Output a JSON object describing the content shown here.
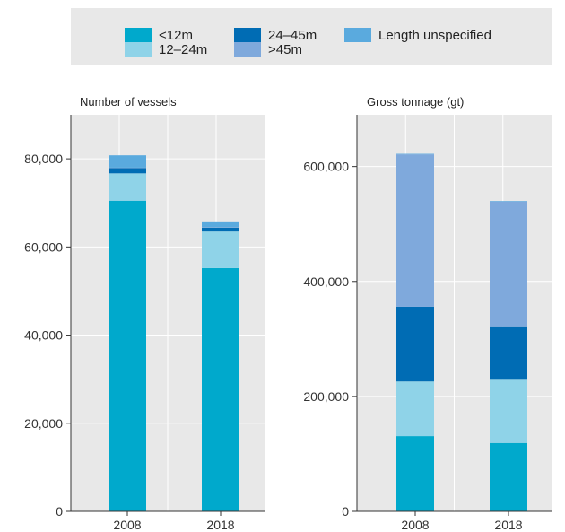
{
  "legend": {
    "items": [
      {
        "label": "<12m",
        "color": "#00a9cc"
      },
      {
        "label": "12–24m",
        "color": "#8fd3e8"
      },
      {
        "label": "24–45m",
        "color": "#006cb4"
      },
      {
        "label": ">45m",
        "color": "#7fa9dc"
      },
      {
        "label": "Length unspecified",
        "color": "#5aaade"
      }
    ]
  },
  "chart_data": [
    {
      "type": "bar",
      "stacked": true,
      "title": "Number of vessels",
      "categories": [
        "2008",
        "2018"
      ],
      "ylim": [
        0,
        90000
      ],
      "yticks": [
        0,
        20000,
        40000,
        60000,
        80000
      ],
      "ytick_labels": [
        "0",
        "20,000",
        "40,000",
        "60,000",
        "80,000"
      ],
      "grid": true,
      "series": [
        {
          "name": "<12m",
          "color": "#00a9cc",
          "values": [
            70500,
            55200
          ]
        },
        {
          "name": "12–24m",
          "color": "#8fd3e8",
          "values": [
            6200,
            8300
          ]
        },
        {
          "name": "24–45m",
          "color": "#006cb4",
          "values": [
            1200,
            900
          ]
        },
        {
          "name": ">45m",
          "color": "#7fa9dc",
          "values": [
            100,
            100
          ]
        },
        {
          "name": "Length unspecified",
          "color": "#5aaade",
          "values": [
            2800,
            1300
          ]
        }
      ]
    },
    {
      "type": "bar",
      "stacked": true,
      "title": "Gross tonnage (gt)",
      "categories": [
        "2008",
        "2018"
      ],
      "ylim": [
        0,
        690000
      ],
      "yticks": [
        0,
        200000,
        400000,
        600000
      ],
      "ytick_labels": [
        "0",
        "200,000",
        "400,000",
        "600,000"
      ],
      "grid": true,
      "series": [
        {
          "name": "<12m",
          "color": "#00a9cc",
          "values": [
            131000,
            119000
          ]
        },
        {
          "name": "12–24m",
          "color": "#8fd3e8",
          "values": [
            95000,
            110000
          ]
        },
        {
          "name": "24–45m",
          "color": "#006cb4",
          "values": [
            130000,
            93000
          ]
        },
        {
          "name": ">45m",
          "color": "#7fa9dc",
          "values": [
            265000,
            217000
          ]
        },
        {
          "name": "Length unspecified",
          "color": "#5aaade",
          "values": [
            1000,
            1000
          ]
        }
      ]
    }
  ]
}
